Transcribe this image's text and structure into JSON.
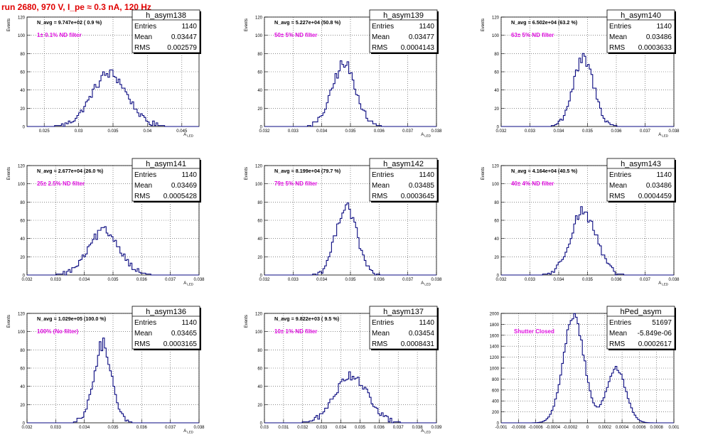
{
  "run_title": "run 2680,   970 V, I_pe ≈ 0.3 nA, 120 Hz",
  "chart_data": [
    {
      "type": "histogram",
      "name": "h_asym138",
      "ylabel": "Events",
      "xlabel": "A_LED",
      "ylim": [
        0,
        120
      ],
      "yticks": [
        0,
        20,
        40,
        60,
        80,
        100,
        120
      ],
      "xlim": [
        0.0225,
        0.0475
      ],
      "xticks": [
        "0.025",
        "0.03",
        "0.035",
        "0.04",
        "0.045"
      ],
      "xtick_values": [
        0.025,
        0.03,
        0.035,
        0.04,
        0.045
      ],
      "navg": "N_avg = 9.747e+02 ( 0.9 %)",
      "filter": "1± 0.1% ND filter",
      "stats": {
        "entries": "1140",
        "mean": "0.03447",
        "rms": "0.002579"
      },
      "mean": 0.03447,
      "rms": 0.002579,
      "peak": 58
    },
    {
      "type": "histogram",
      "name": "h_asym139",
      "ylabel": "Events",
      "xlabel": "A_LED",
      "ylim": [
        0,
        120
      ],
      "yticks": [
        0,
        20,
        40,
        60,
        80,
        100,
        120
      ],
      "xlim": [
        0.032,
        0.038
      ],
      "xticks": [
        "0.032",
        "0.033",
        "0.034",
        "0.035",
        "0.036",
        "0.037",
        "0.038"
      ],
      "xtick_values": [
        0.032,
        0.033,
        0.034,
        0.035,
        0.036,
        0.037,
        0.038
      ],
      "navg": "N_avg = 5.227e+04 (50.8 %)",
      "filter": "50± 5% ND filter",
      "stats": {
        "entries": "1140",
        "mean": "0.03477",
        "rms": "0.0004143"
      },
      "mean": 0.03477,
      "rms": 0.0004143,
      "peak": 68
    },
    {
      "type": "histogram",
      "name": "h_asym140",
      "ylabel": "Events",
      "xlabel": "A_LED",
      "ylim": [
        0,
        120
      ],
      "yticks": [
        0,
        20,
        40,
        60,
        80,
        100,
        120
      ],
      "xlim": [
        0.032,
        0.038
      ],
      "xticks": [
        "0.032",
        "0.033",
        "0.034",
        "0.035",
        "0.036",
        "0.037",
        "0.038"
      ],
      "xtick_values": [
        0.032,
        0.033,
        0.034,
        0.035,
        0.036,
        0.037,
        0.038
      ],
      "navg": "N_avg = 6.502e+04 (63.2 %)",
      "filter": "63± 5% ND filter",
      "stats": {
        "entries": "1140",
        "mean": "0.03486",
        "rms": "0.0003633"
      },
      "mean": 0.03486,
      "rms": 0.0003633,
      "peak": 73
    },
    {
      "type": "histogram",
      "name": "h_asym141",
      "ylabel": "Events",
      "xlabel": "A_LED",
      "ylim": [
        0,
        120
      ],
      "yticks": [
        0,
        20,
        40,
        60,
        80,
        100,
        120
      ],
      "xlim": [
        0.032,
        0.038
      ],
      "xticks": [
        "0.032",
        "0.033",
        "0.034",
        "0.035",
        "0.036",
        "0.037",
        "0.038"
      ],
      "xtick_values": [
        0.032,
        0.033,
        0.034,
        0.035,
        0.036,
        0.037,
        0.038
      ],
      "navg": "N_avg = 2.677e+04 (26.0 %)",
      "filter": "25± 2.5% ND filter",
      "stats": {
        "entries": "1140",
        "mean": "0.03469",
        "rms": "0.0005428"
      },
      "mean": 0.03469,
      "rms": 0.0005428,
      "peak": 48
    },
    {
      "type": "histogram",
      "name": "h_asym142",
      "ylabel": "Events",
      "xlabel": "A_LED",
      "ylim": [
        0,
        120
      ],
      "yticks": [
        0,
        20,
        40,
        60,
        80,
        100,
        120
      ],
      "xlim": [
        0.032,
        0.038
      ],
      "xticks": [
        "0.032",
        "0.033",
        "0.034",
        "0.035",
        "0.036",
        "0.037",
        "0.038"
      ],
      "xtick_values": [
        0.032,
        0.033,
        0.034,
        0.035,
        0.036,
        0.037,
        0.038
      ],
      "navg": "N_avg = 8.199e+04 (79.7 %)",
      "filter": "79± 5% ND filter",
      "stats": {
        "entries": "1140",
        "mean": "0.03485",
        "rms": "0.0003645"
      },
      "mean": 0.03485,
      "rms": 0.0003645,
      "peak": 77
    },
    {
      "type": "histogram",
      "name": "h_asym143",
      "ylabel": "Events",
      "xlabel": "A_LED",
      "ylim": [
        0,
        120
      ],
      "yticks": [
        0,
        20,
        40,
        60,
        80,
        100,
        120
      ],
      "xlim": [
        0.032,
        0.038
      ],
      "xticks": [
        "0.032",
        "0.033",
        "0.034",
        "0.035",
        "0.036",
        "0.037",
        "0.038"
      ],
      "xtick_values": [
        0.032,
        0.033,
        0.034,
        0.035,
        0.036,
        0.037,
        0.038
      ],
      "navg": "N_avg = 4.164e+04 (40.5 %)",
      "filter": "40± 4% ND filter",
      "stats": {
        "entries": "1140",
        "mean": "0.03486",
        "rms": "0.0004459"
      },
      "mean": 0.03486,
      "rms": 0.0004459,
      "peak": 70
    },
    {
      "type": "histogram",
      "name": "h_asym136",
      "ylabel": "Events",
      "xlabel": "A_LED",
      "ylim": [
        0,
        120
      ],
      "yticks": [
        0,
        20,
        40,
        60,
        80,
        100,
        120
      ],
      "xlim": [
        0.032,
        0.038
      ],
      "xticks": [
        "0.032",
        "0.033",
        "0.034",
        "0.035",
        "0.036",
        "0.037",
        "0.038"
      ],
      "xtick_values": [
        0.032,
        0.033,
        0.034,
        0.035,
        0.036,
        0.037,
        0.038
      ],
      "navg": "N_avg = 1.029e+05 (100.0 %)",
      "filter": "100% (No filter)",
      "stats": {
        "entries": "1140",
        "mean": "0.03465",
        "rms": "0.0003165"
      },
      "mean": 0.03465,
      "rms": 0.0003165,
      "peak": 85
    },
    {
      "type": "histogram",
      "name": "h_asym137",
      "ylabel": "Events",
      "xlabel": "A_LED",
      "ylim": [
        0,
        120
      ],
      "yticks": [
        0,
        20,
        40,
        60,
        80,
        100,
        120
      ],
      "xlim": [
        0.03,
        0.039
      ],
      "xticks": [
        "0.03",
        "0.031",
        "0.032",
        "0.033",
        "0.034",
        "0.035",
        "0.036",
        "0.037",
        "0.038",
        "0.039"
      ],
      "xtick_values": [
        0.03,
        0.031,
        0.032,
        0.033,
        0.034,
        0.035,
        0.036,
        0.037,
        0.038,
        0.039
      ],
      "navg": "N_avg = 9.822e+03 ( 9.5 %)",
      "filter": "10± 1% ND filter",
      "stats": {
        "entries": "1140",
        "mean": "0.03454",
        "rms": "0.0008431"
      },
      "mean": 0.03454,
      "rms": 0.0008431,
      "peak": 53
    },
    {
      "type": "histogram",
      "name": "hPed_asym",
      "ylabel": "",
      "xlabel": "",
      "ylim": [
        0,
        2000
      ],
      "yticks": [
        0,
        200,
        400,
        600,
        800,
        1000,
        1200,
        1400,
        1600,
        1800,
        2000
      ],
      "xlim": [
        -0.001,
        0.001
      ],
      "xticks": [
        "-0.001",
        "-0.0008",
        "-0.0006",
        "-0.0004",
        "-0.0002",
        "0",
        "0.0002",
        "0.0004",
        "0.0006",
        "0.0008",
        "0.001"
      ],
      "xtick_values": [
        -0.001,
        -0.0008,
        -0.0006,
        -0.0004,
        -0.0002,
        0,
        0.0002,
        0.0004,
        0.0006,
        0.0008,
        0.001
      ],
      "navg": "",
      "filter": "Shutter Closed",
      "stats": {
        "entries": "51697",
        "mean": "-5.849e-06",
        "rms": "0.0002617"
      },
      "bimodal": {
        "mu1": -0.00016,
        "s1": 0.00012,
        "h1": 1950,
        "mu2": 0.00033,
        "s2": 0.00011,
        "h2": 1000
      }
    }
  ],
  "colors": {
    "line": "#0a0a80",
    "title": "#e00000",
    "annotation": "#e010e0",
    "grid": "#444444"
  }
}
